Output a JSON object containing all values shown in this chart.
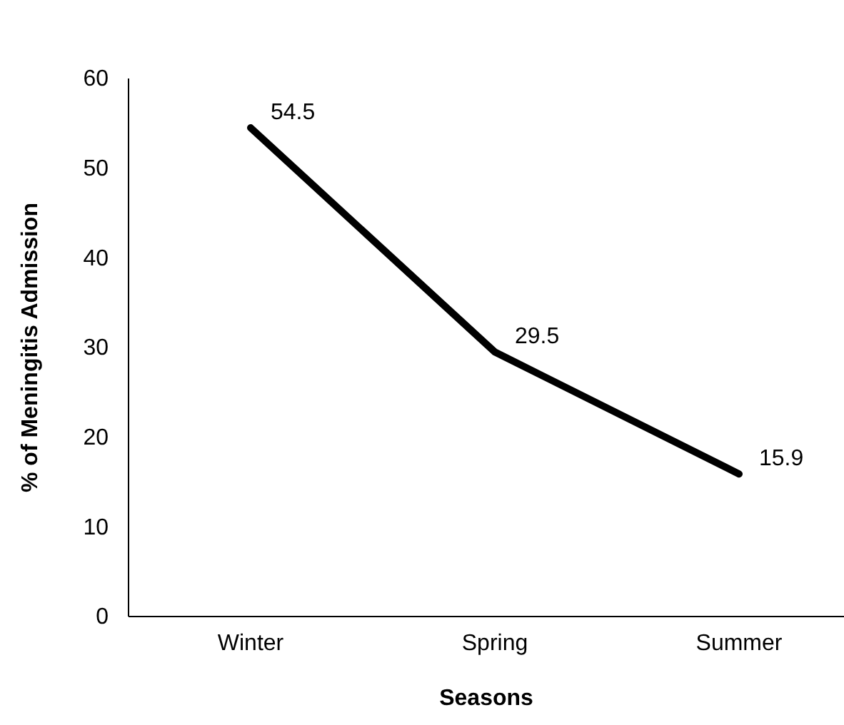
{
  "chart_data": {
    "type": "line",
    "xlabel": "Seasons",
    "ylabel": "% of Meningitis Admission",
    "categories": [
      "Winter",
      "Spring",
      "Summer"
    ],
    "series": [
      {
        "color": "#000000",
        "values": [
          54.5,
          29.5,
          15.9
        ]
      }
    ],
    "ylim": [
      0,
      60
    ],
    "yticks": [
      0,
      10,
      20,
      30,
      40,
      50,
      60
    ],
    "grid": false,
    "marker": "none",
    "line_style": "solid",
    "data_labels": true
  }
}
